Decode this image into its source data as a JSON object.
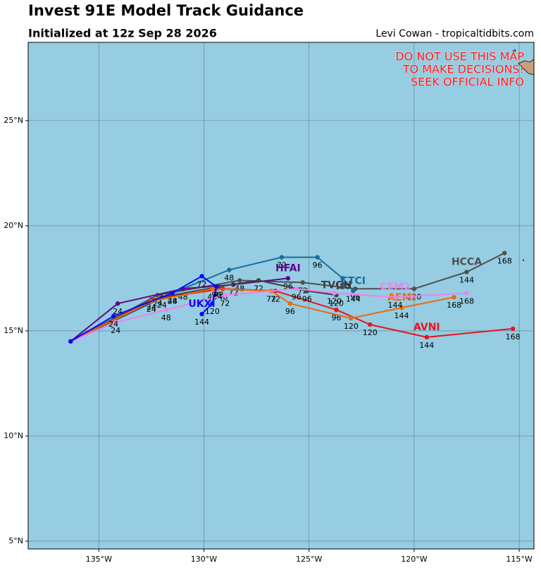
{
  "chart_data": {
    "type": "track-map",
    "title": "Invest 91E Model Track Guidance",
    "subtitle": "Initialized at 12z Sep 28 2026",
    "credit": "Levi Cowan - tropicaltidbits.com",
    "warning": [
      "DO NOT USE THIS MAP",
      "TO MAKE DECISIONS!",
      "SEEK OFFICIAL INFO"
    ],
    "background": "#96cde2",
    "grid": true,
    "xlim": [
      -138.36,
      -114.3
    ],
    "ylim": [
      4.63,
      28.72
    ],
    "xticks": [
      {
        "value": -135,
        "label": "135°W"
      },
      {
        "value": -130,
        "label": "130°W"
      },
      {
        "value": -125,
        "label": "125°W"
      },
      {
        "value": -120,
        "label": "120°W"
      },
      {
        "value": -115,
        "label": "115°W"
      }
    ],
    "yticks": [
      {
        "value": 5,
        "label": "5°N"
      },
      {
        "value": 10,
        "label": "10°N"
      },
      {
        "value": 15,
        "label": "15°N"
      },
      {
        "value": 20,
        "label": "20°N"
      },
      {
        "value": 25,
        "label": "25°N"
      }
    ],
    "series": [
      {
        "name": "AVNI",
        "color": "#e8141c",
        "hours": [
          null,
          24,
          48,
          72,
          96,
          120,
          144,
          168
        ],
        "x": [
          -136.34,
          -132.5,
          -129.1,
          -126.6,
          -123.7,
          -122.1,
          -119.4,
          -115.3
        ],
        "values": [
          14.5,
          16.5,
          17.0,
          16.9,
          16.0,
          15.3,
          14.7,
          15.1
        ]
      },
      {
        "name": "HCCA",
        "color": "#505050",
        "hours": [
          null,
          24,
          48,
          72,
          96,
          120,
          144,
          168
        ],
        "x": [
          -136.34,
          -132.2,
          -128.3,
          -125.3,
          -122.8,
          -120.0,
          -117.5,
          -115.7
        ],
        "values": [
          14.5,
          16.7,
          17.4,
          17.3,
          17.0,
          17.0,
          17.8,
          18.7
        ]
      },
      {
        "name": "CTCI",
        "color": "#1a6e9e",
        "hours": [
          null,
          24,
          48,
          72,
          96,
          120,
          144
        ],
        "x": [
          -136.34,
          -131.5,
          -128.8,
          -126.3,
          -124.6,
          -123.4,
          -122.9
        ],
        "values": [
          14.5,
          16.8,
          17.9,
          18.5,
          18.5,
          17.5,
          16.9
        ]
      },
      {
        "name": "HFAI",
        "color": "#5a0a8a",
        "hours": [
          null,
          24,
          48,
          72,
          96
        ],
        "x": [
          -136.34,
          -134.1,
          -131.0,
          -128.6,
          -126.0
        ],
        "values": [
          14.5,
          16.3,
          17.0,
          17.2,
          17.5
        ]
      },
      {
        "name": "TVGN",
        "color": "#404040",
        "hours": [
          null,
          24,
          48,
          72,
          96,
          120
        ],
        "x": [
          -136.34,
          -132.0,
          -129.3,
          -127.4,
          -125.1,
          -123.7
        ],
        "values": [
          14.5,
          16.6,
          17.1,
          17.4,
          16.9,
          16.7
        ]
      },
      {
        "name": "AEMI",
        "color": "#ec6a10",
        "hours": [
          null,
          24,
          48,
          72,
          96,
          120,
          144,
          168
        ],
        "x": [
          -136.34,
          -132.5,
          -129.6,
          -126.8,
          -125.9,
          -123.0,
          -120.6,
          -118.1
        ],
        "values": [
          14.5,
          16.4,
          17.0,
          16.9,
          16.3,
          15.6,
          16.1,
          16.6
        ]
      },
      {
        "name": "CEM2",
        "color": "#ee82ee",
        "hours": [
          null,
          24,
          48,
          72,
          96,
          120,
          144,
          168
        ],
        "x": [
          -136.34,
          -134.2,
          -131.8,
          -129.0,
          -125.6,
          -123.8,
          -120.9,
          -117.5
        ],
        "values": [
          14.5,
          15.4,
          16.0,
          16.7,
          17.0,
          16.8,
          16.6,
          16.8
        ]
      },
      {
        "name": "UKXI",
        "color": "#0a0aff",
        "hours": [
          null,
          24,
          48,
          72,
          96,
          120,
          144
        ],
        "x": [
          -136.34,
          -134.3,
          -131.5,
          -130.1,
          -129.4,
          -129.6,
          -130.1
        ],
        "values": [
          14.5,
          15.7,
          16.8,
          17.6,
          17.1,
          16.3,
          15.8
        ]
      }
    ]
  }
}
